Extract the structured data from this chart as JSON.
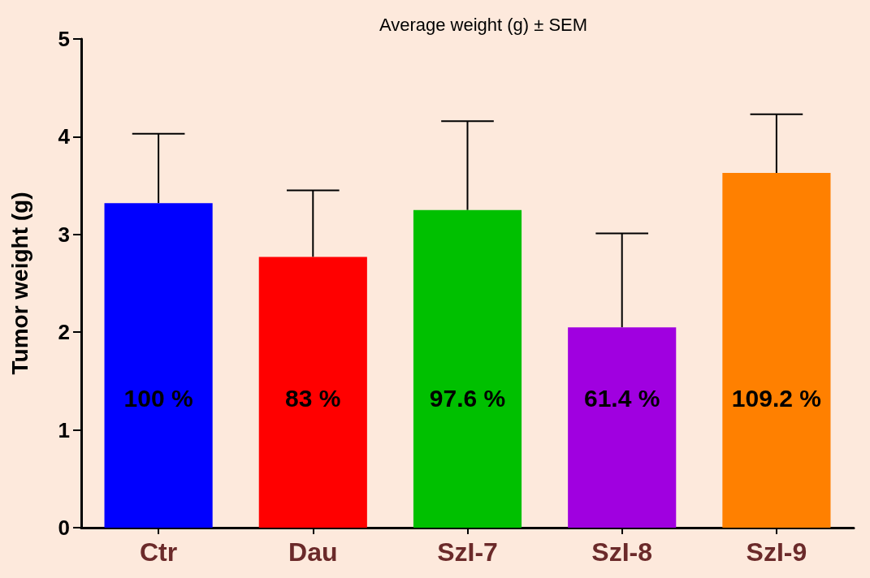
{
  "chart_data": {
    "type": "bar",
    "title": "Average weight (g) ± SEM",
    "ylabel": "Tumor weight (g)",
    "categories": [
      "Ctr",
      "Dau",
      "SzI-7",
      "SzI-8",
      "SzI-9"
    ],
    "values": [
      3.32,
      2.77,
      3.25,
      2.05,
      3.63
    ],
    "colors": [
      "#0000ff",
      "#ff0000",
      "#00c000",
      "#a000e0",
      "#ff8000"
    ],
    "errors": [
      [
        3.32,
        4.03
      ],
      [
        2.77,
        3.45
      ],
      [
        3.25,
        4.16
      ],
      [
        2.05,
        3.01
      ],
      [
        3.63,
        4.23
      ]
    ],
    "annotations": [
      "100 %",
      "83 %",
      "97.6 %",
      "61.4 %",
      "109.2 %"
    ],
    "ylim": [
      0,
      5
    ],
    "yticks": [
      0,
      1,
      2,
      3,
      4,
      5
    ],
    "grid": false
  }
}
